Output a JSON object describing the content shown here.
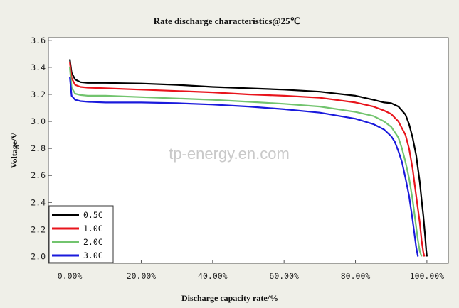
{
  "chart_data": {
    "type": "line",
    "title": "Rate discharge characteristics@25℃",
    "xlabel": "Discharge capacity rate/%",
    "ylabel": "Voltage/V",
    "watermark": "tp-energy.en.com",
    "xlim": [
      -6,
      106
    ],
    "ylim": [
      1.95,
      3.62
    ],
    "xticks": [
      0,
      20,
      40,
      60,
      80,
      100
    ],
    "xtick_labels": [
      "0.00%",
      "20.00%",
      "40.00%",
      "60.00%",
      "80.00%",
      "100.00%"
    ],
    "yticks": [
      2.0,
      2.2,
      2.4,
      2.6,
      2.8,
      3.0,
      3.2,
      3.4,
      3.6
    ],
    "ytick_labels": [
      "2.0",
      "2.2",
      "2.4",
      "2.6",
      "2.8",
      "3.0",
      "3.2",
      "3.4",
      "3.6"
    ],
    "grid": false,
    "legend_position": "bottom-left",
    "series": [
      {
        "name": "0.5C",
        "color": "#000000",
        "x": [
          0,
          0.5,
          1.5,
          3,
          5,
          10,
          20,
          30,
          40,
          50,
          60,
          70,
          80,
          85,
          88,
          90,
          92,
          94,
          95,
          96,
          97,
          98,
          98.5,
          99,
          99.5,
          99.8,
          100
        ],
        "y": [
          3.46,
          3.36,
          3.31,
          3.29,
          3.285,
          3.285,
          3.28,
          3.27,
          3.255,
          3.245,
          3.235,
          3.22,
          3.19,
          3.16,
          3.14,
          3.135,
          3.11,
          3.05,
          2.98,
          2.88,
          2.75,
          2.55,
          2.42,
          2.3,
          2.15,
          2.05,
          2.0
        ]
      },
      {
        "name": "1.0C",
        "color": "#e8141c",
        "x": [
          0,
          0.5,
          1.5,
          3,
          5,
          10,
          20,
          30,
          40,
          50,
          60,
          70,
          80,
          85,
          88,
          90,
          92,
          94,
          95,
          96,
          97,
          98,
          98.5,
          99,
          99.3
        ],
        "y": [
          3.44,
          3.32,
          3.27,
          3.255,
          3.25,
          3.245,
          3.235,
          3.225,
          3.215,
          3.2,
          3.19,
          3.175,
          3.14,
          3.11,
          3.08,
          3.055,
          3.0,
          2.9,
          2.8,
          2.65,
          2.45,
          2.25,
          2.12,
          2.03,
          2.0
        ]
      },
      {
        "name": "2.0C",
        "color": "#72c46e",
        "x": [
          0,
          0.5,
          1.5,
          3,
          5,
          10,
          20,
          30,
          40,
          50,
          60,
          70,
          80,
          85,
          88,
          90,
          92,
          93,
          94,
          95,
          96,
          97,
          97.5,
          98,
          98.5
        ],
        "y": [
          3.4,
          3.25,
          3.205,
          3.195,
          3.19,
          3.19,
          3.18,
          3.17,
          3.16,
          3.145,
          3.13,
          3.11,
          3.07,
          3.04,
          3.0,
          2.96,
          2.88,
          2.8,
          2.7,
          2.58,
          2.42,
          2.22,
          2.12,
          2.04,
          2.0
        ]
      },
      {
        "name": "3.0C",
        "color": "#1a1adc",
        "x": [
          0,
          0.5,
          1.5,
          3,
          5,
          10,
          20,
          30,
          40,
          50,
          60,
          70,
          80,
          85,
          88,
          90,
          91,
          92,
          93,
          94,
          95,
          96,
          96.5,
          97,
          97.5
        ],
        "y": [
          3.33,
          3.19,
          3.16,
          3.15,
          3.145,
          3.14,
          3.14,
          3.135,
          3.125,
          3.11,
          3.09,
          3.065,
          3.02,
          2.98,
          2.94,
          2.89,
          2.85,
          2.78,
          2.7,
          2.58,
          2.45,
          2.27,
          2.17,
          2.07,
          2.0
        ]
      }
    ]
  }
}
